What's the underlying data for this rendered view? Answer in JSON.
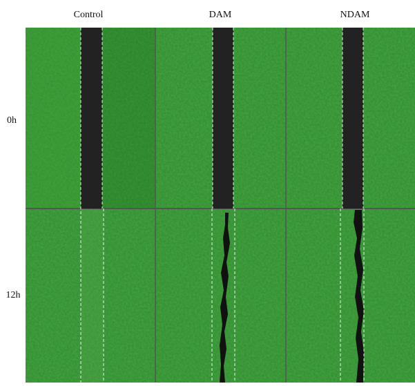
{
  "figure": {
    "columns": [
      "Control",
      "DAM",
      "NDAM"
    ],
    "rows": [
      "0h",
      "12h"
    ]
  }
}
